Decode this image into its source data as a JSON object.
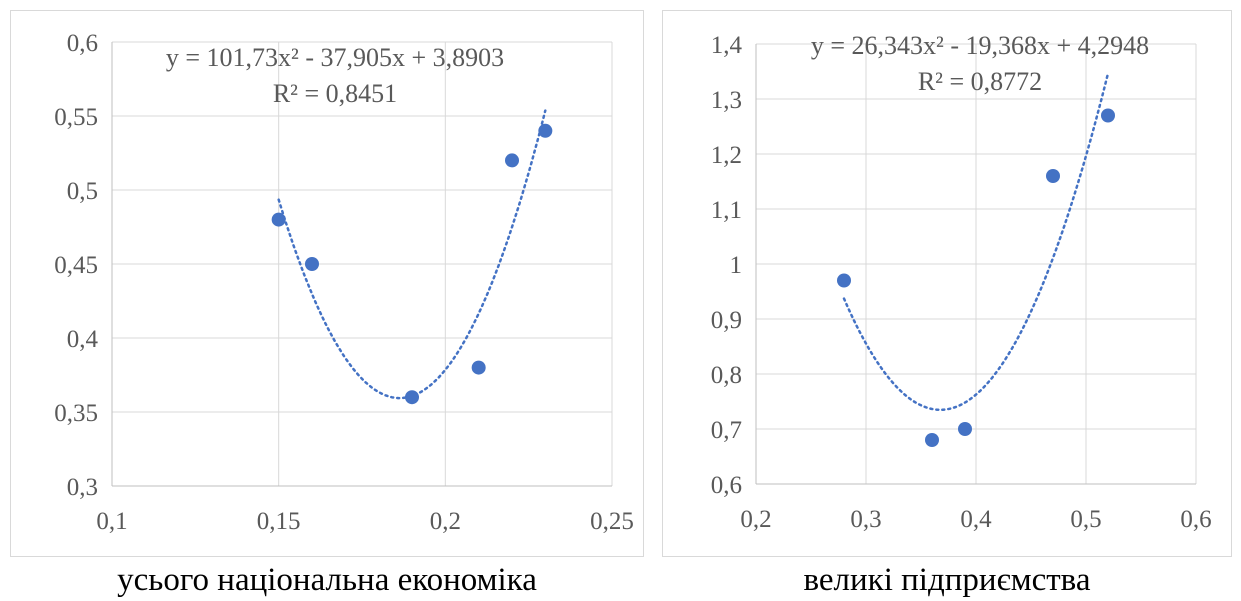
{
  "chart_data": [
    {
      "type": "scatter",
      "xlim": [
        0.1,
        0.25
      ],
      "ylim": [
        0.3,
        0.6
      ],
      "x_ticks": [
        "0,1",
        "0,15",
        "0,2",
        "0,25"
      ],
      "y_ticks": [
        "0,3",
        "0,35",
        "0,4",
        "0,45",
        "0,5",
        "0,55",
        "0,6"
      ],
      "x_tick_values": [
        0.1,
        0.15,
        0.2,
        0.25
      ],
      "y_tick_values": [
        0.3,
        0.35,
        0.4,
        0.45,
        0.5,
        0.55,
        0.6
      ],
      "points": [
        {
          "x": 0.15,
          "y": 0.48
        },
        {
          "x": 0.16,
          "y": 0.45
        },
        {
          "x": 0.19,
          "y": 0.36
        },
        {
          "x": 0.21,
          "y": 0.38
        },
        {
          "x": 0.22,
          "y": 0.52
        },
        {
          "x": 0.23,
          "y": 0.54
        }
      ],
      "trendline": {
        "type": "polynomial",
        "order": 2,
        "coefficients": [
          101.73,
          -37.905,
          3.8903
        ],
        "x_range": [
          0.15,
          0.23
        ]
      },
      "equation": "y = 101,73x² - 37,905x + 3,8903",
      "r_squared": "R² = 0,8451",
      "caption": "усього національна економіка",
      "grid": true,
      "colors": {
        "points": "#4472c4",
        "trendline": "#4472c4",
        "grid": "#d9d9d9",
        "text": "#595959"
      }
    },
    {
      "type": "scatter",
      "xlim": [
        0.2,
        0.6
      ],
      "ylim": [
        0.6,
        1.4
      ],
      "x_ticks": [
        "0,2",
        "0,3",
        "0,4",
        "0,5",
        "0,6"
      ],
      "y_ticks": [
        "0,6",
        "0,7",
        "0,8",
        "0,9",
        "1",
        "1,1",
        "1,2",
        "1,3",
        "1,4"
      ],
      "x_tick_values": [
        0.2,
        0.3,
        0.4,
        0.5,
        0.6
      ],
      "y_tick_values": [
        0.6,
        0.7,
        0.8,
        0.9,
        1.0,
        1.1,
        1.2,
        1.3,
        1.4
      ],
      "points": [
        {
          "x": 0.28,
          "y": 0.97
        },
        {
          "x": 0.36,
          "y": 0.68
        },
        {
          "x": 0.39,
          "y": 0.7
        },
        {
          "x": 0.47,
          "y": 1.16
        },
        {
          "x": 0.52,
          "y": 1.27
        }
      ],
      "trendline": {
        "type": "polynomial",
        "order": 2,
        "coefficients": [
          26.343,
          -19.368,
          4.2948
        ],
        "x_range": [
          0.28,
          0.52
        ]
      },
      "equation": "y = 26,343x² - 19,368x + 4,2948",
      "r_squared": "R² = 0,8772",
      "caption": "великі підприємства",
      "grid": true,
      "colors": {
        "points": "#4472c4",
        "trendline": "#4472c4",
        "grid": "#d9d9d9",
        "text": "#595959"
      }
    }
  ]
}
